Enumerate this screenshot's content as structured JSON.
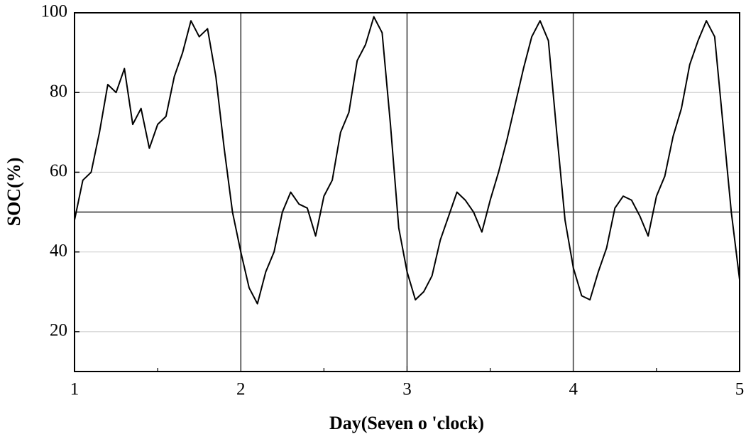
{
  "chart_data": {
    "type": "line",
    "xlabel": "Day(Seven o 'clock)",
    "ylabel": "SOC(%)",
    "color": "#000000",
    "xlim": [
      1,
      5
    ],
    "xticks": [
      1,
      2,
      3,
      4,
      5
    ],
    "ylim": [
      10,
      100
    ],
    "yticks": [
      20,
      40,
      60,
      80,
      100
    ],
    "grid": "y",
    "reference_lines": {
      "x": [
        2,
        3,
        4
      ],
      "y": [
        50
      ]
    },
    "x": [
      1,
      1.05,
      1.1,
      1.15,
      1.2,
      1.25,
      1.3,
      1.35,
      1.4,
      1.45,
      1.5,
      1.55,
      1.6,
      1.65,
      1.7,
      1.75,
      1.8,
      1.85,
      1.9,
      1.95,
      2,
      2.05,
      2.1,
      2.15,
      2.2,
      2.25,
      2.3,
      2.35,
      2.4,
      2.45,
      2.5,
      2.55,
      2.6,
      2.65,
      2.7,
      2.75,
      2.8,
      2.85,
      2.9,
      2.95,
      3,
      3.05,
      3.1,
      3.15,
      3.2,
      3.25,
      3.3,
      3.35,
      3.4,
      3.45,
      3.5,
      3.55,
      3.6,
      3.65,
      3.7,
      3.75,
      3.8,
      3.85,
      3.9,
      3.95,
      4,
      4.05,
      4.1,
      4.15,
      4.2,
      4.25,
      4.3,
      4.35,
      4.4,
      4.45,
      4.5,
      4.55,
      4.6,
      4.65,
      4.7,
      4.75,
      4.8,
      4.85,
      4.9,
      4.95,
      5
    ],
    "values": [
      48,
      58,
      60,
      70,
      82,
      80,
      86,
      72,
      76,
      66,
      72,
      74,
      84,
      90,
      98,
      94,
      96,
      84,
      66,
      50,
      40,
      31,
      27,
      35,
      40,
      50,
      55,
      52,
      51,
      44,
      54,
      58,
      70,
      75,
      88,
      92,
      99,
      95,
      72,
      46,
      35,
      28,
      30,
      34,
      43,
      49,
      55,
      53,
      50,
      45,
      53,
      60,
      68,
      77,
      86,
      94,
      98,
      93,
      70,
      48,
      36,
      29,
      28,
      35,
      41,
      51,
      54,
      53,
      49,
      44,
      54,
      59,
      69,
      76,
      87,
      93,
      98,
      94,
      72,
      50,
      33
    ]
  }
}
